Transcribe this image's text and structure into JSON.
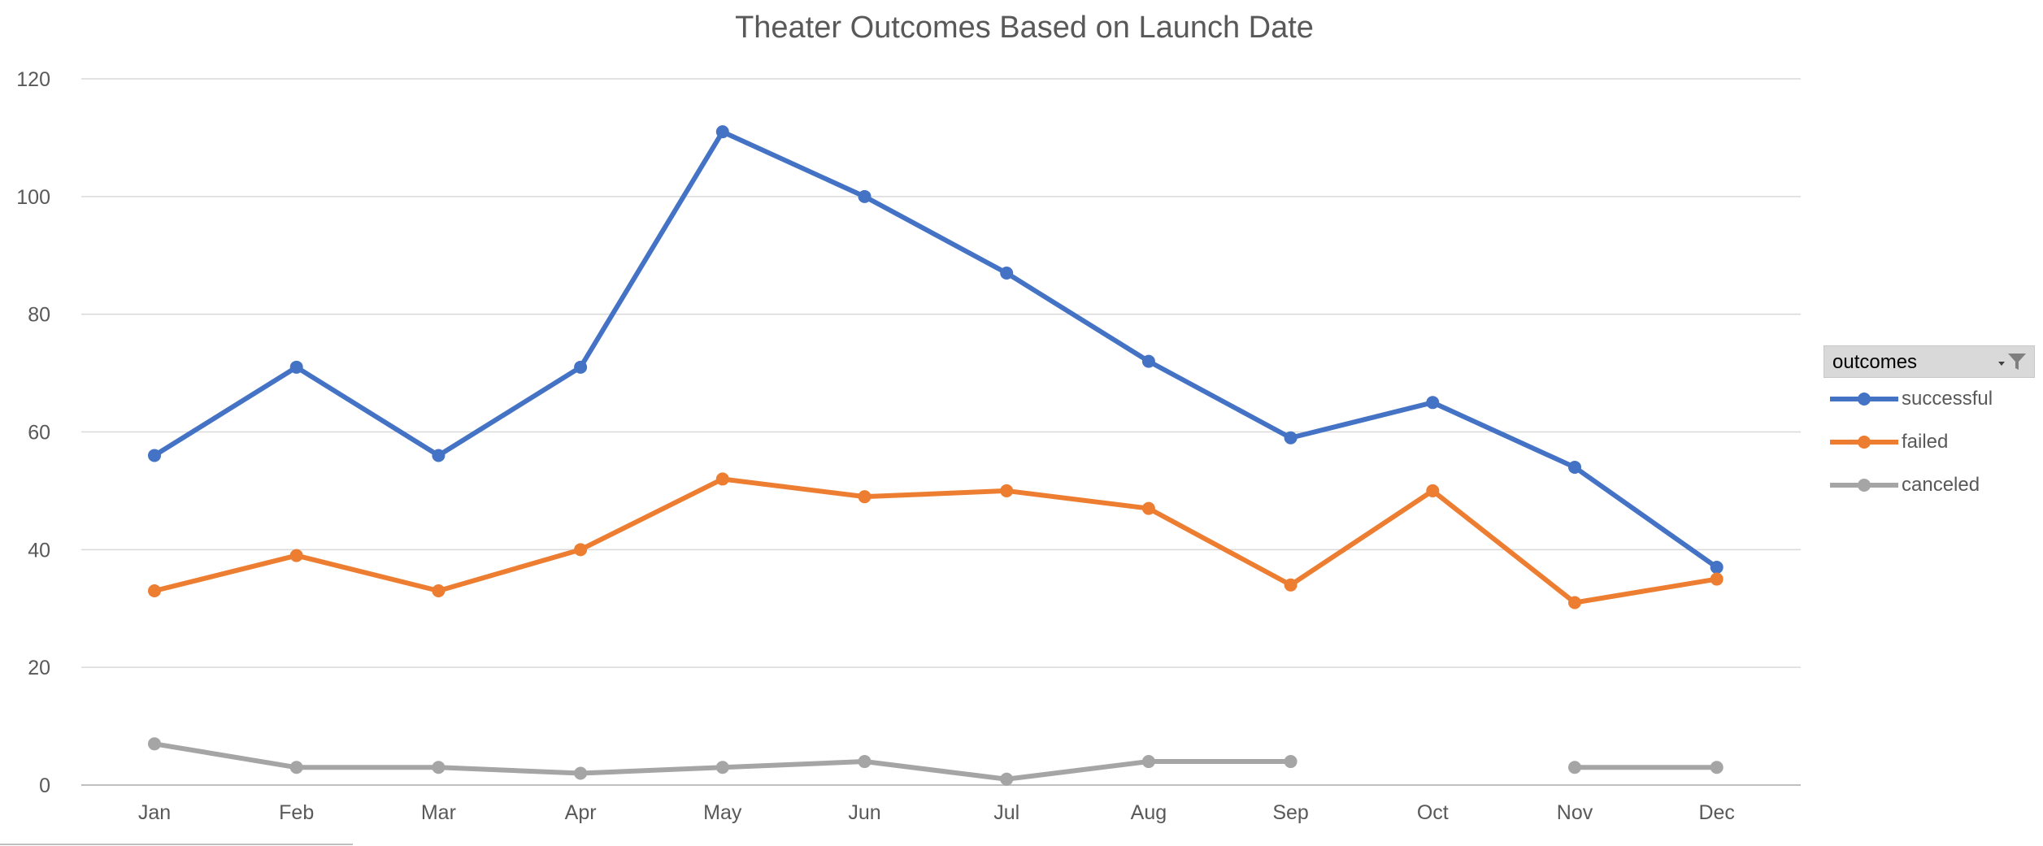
{
  "chart_data": {
    "type": "line",
    "title": "Theater Outcomes Based on Launch Date",
    "xlabel": "",
    "ylabel": "",
    "categories": [
      "Jan",
      "Feb",
      "Mar",
      "Apr",
      "May",
      "Jun",
      "Jul",
      "Aug",
      "Sep",
      "Oct",
      "Nov",
      "Dec"
    ],
    "ylim": [
      0,
      120
    ],
    "yticks": [
      0,
      20,
      40,
      60,
      80,
      100,
      120
    ],
    "grid": true,
    "legend_position": "right",
    "legend_title": "outcomes",
    "series": [
      {
        "name": "successful",
        "color": "#4472C4",
        "values": [
          56,
          71,
          56,
          71,
          111,
          100,
          87,
          72,
          59,
          65,
          54,
          37
        ]
      },
      {
        "name": "failed",
        "color": "#ED7D31",
        "values": [
          33,
          39,
          33,
          40,
          52,
          49,
          50,
          47,
          34,
          50,
          31,
          35
        ]
      },
      {
        "name": "canceled",
        "color": "#A5A5A5",
        "values": [
          7,
          3,
          3,
          2,
          3,
          4,
          1,
          4,
          4,
          null,
          3,
          3
        ]
      }
    ]
  },
  "legend_filter_icon": "filter-dropdown-icon"
}
